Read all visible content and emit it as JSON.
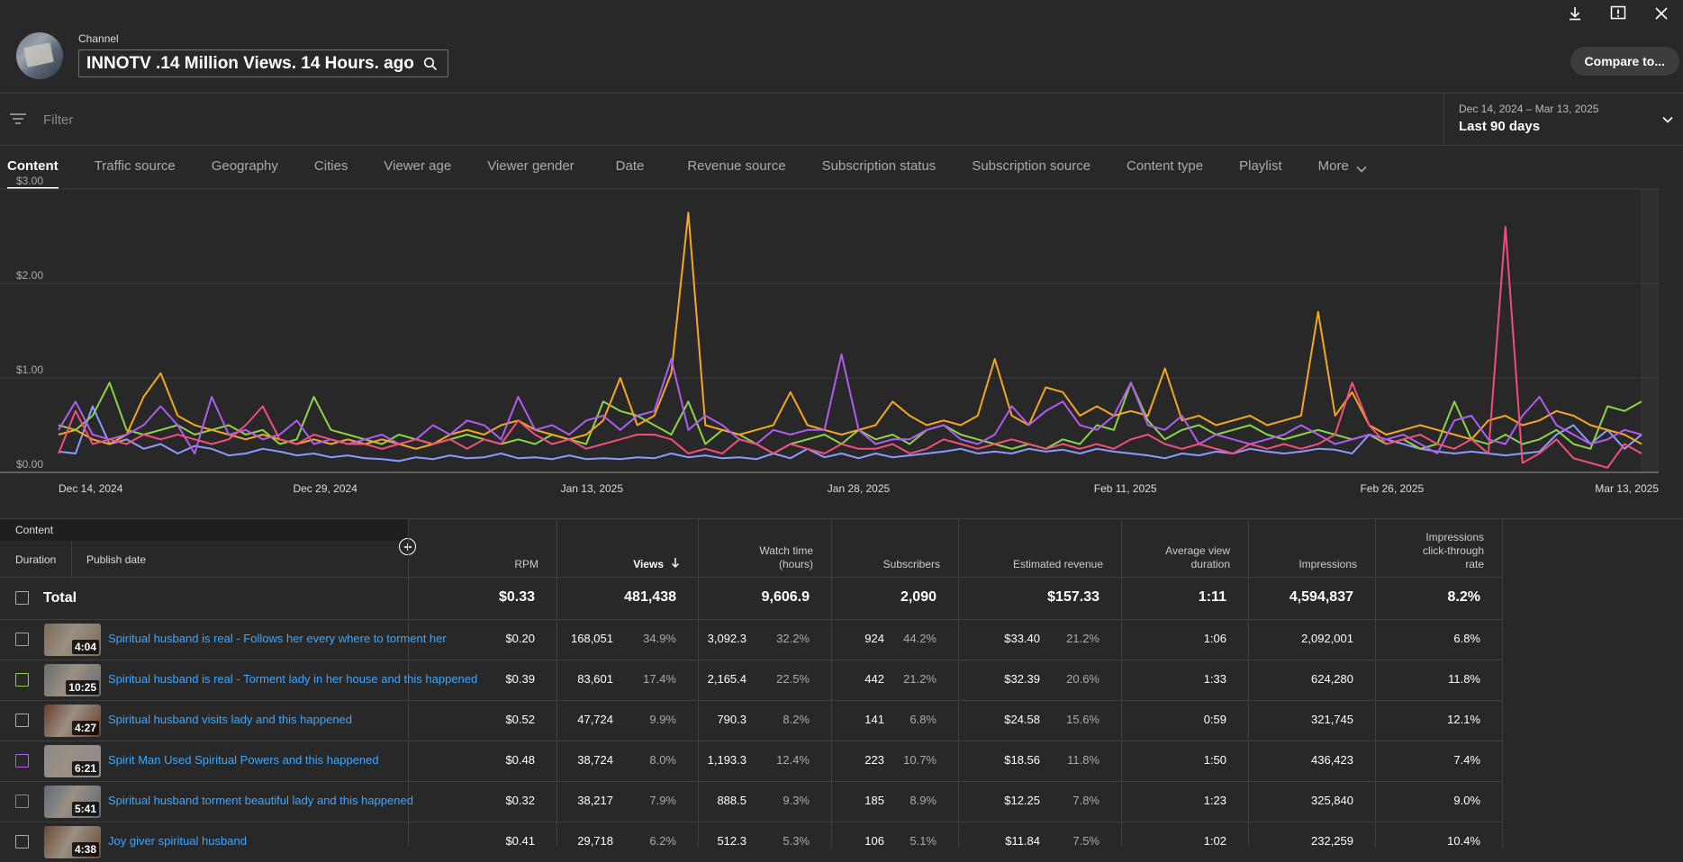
{
  "header": {
    "channel_label": "Channel",
    "channel_name": "INNOTV .14 Million Views. 14 Hours. ago",
    "compare_label": "Compare to..."
  },
  "filter": {
    "placeholder": "Filter",
    "date_range": "Dec 14, 2024 – Mar 13, 2025",
    "period": "Last 90 days"
  },
  "tabs": [
    "Content",
    "Traffic source",
    "Geography",
    "Cities",
    "Viewer age",
    "Viewer gender",
    "Date",
    "Revenue source",
    "Subscription status",
    "Subscription source",
    "Content type",
    "Playlist",
    "More"
  ],
  "colors": {
    "blue": "#8c9bff",
    "green": "#8cd447",
    "orange": "#f5a623",
    "purple": "#b05cf2",
    "pink": "#f0507a",
    "link": "#3ea6ff"
  },
  "chart_data": {
    "type": "line",
    "ylabel": "",
    "xlabel": "",
    "ylim": [
      0,
      3
    ],
    "yticks": [
      "$0.00",
      "$1.00",
      "$2.00",
      "$3.00"
    ],
    "xticks": [
      "Dec 14, 2024",
      "Dec 29, 2024",
      "Jan 13, 2025",
      "Jan 28, 2025",
      "Feb 11, 2025",
      "Feb 26, 2025",
      "Mar 13, 2025"
    ],
    "x_start": "Dec 14, 2024",
    "x_end": "Mar 13, 2025",
    "series": [
      {
        "color": "#8c9bff",
        "values": [
          0.22,
          0.2,
          0.7,
          0.3,
          0.35,
          0.25,
          0.3,
          0.2,
          0.28,
          0.25,
          0.18,
          0.2,
          0.25,
          0.22,
          0.18,
          0.2,
          0.16,
          0.18,
          0.15,
          0.14,
          0.12,
          0.16,
          0.14,
          0.18,
          0.15,
          0.16,
          0.2,
          0.15,
          0.16,
          0.14,
          0.18,
          0.14,
          0.15,
          0.14,
          0.16,
          0.15,
          0.2,
          0.16,
          0.18,
          0.15,
          0.16,
          0.14,
          0.2,
          0.15,
          0.25,
          0.16,
          0.2,
          0.15,
          0.2,
          0.16,
          0.18,
          0.2,
          0.22,
          0.25,
          0.2,
          0.22,
          0.2,
          0.25,
          0.22,
          0.24,
          0.2,
          0.25,
          0.22,
          0.2,
          0.18,
          0.15,
          0.2,
          0.18,
          0.22,
          0.2,
          0.25,
          0.22,
          0.2,
          0.22,
          0.25,
          0.24,
          0.2,
          0.4,
          0.35,
          0.3,
          0.25,
          0.22,
          0.2,
          0.22,
          0.2,
          0.18,
          0.2,
          0.22,
          0.4,
          0.5,
          0.3,
          0.45,
          0.25,
          0.4
        ]
      },
      {
        "color": "#8cd447",
        "values": [
          0.5,
          0.45,
          0.6,
          0.95,
          0.45,
          0.4,
          0.45,
          0.5,
          0.4,
          0.45,
          0.5,
          0.4,
          0.45,
          0.3,
          0.35,
          0.8,
          0.45,
          0.4,
          0.35,
          0.3,
          0.4,
          0.35,
          0.3,
          0.35,
          0.4,
          0.35,
          0.3,
          0.35,
          0.3,
          0.4,
          0.35,
          0.3,
          0.75,
          0.65,
          0.6,
          0.5,
          0.4,
          0.75,
          0.3,
          0.45,
          0.4,
          0.3,
          0.2,
          0.3,
          0.35,
          0.4,
          0.3,
          0.45,
          0.35,
          0.4,
          0.3,
          0.45,
          0.5,
          0.4,
          0.35,
          0.3,
          0.25,
          0.3,
          0.25,
          0.35,
          0.3,
          0.5,
          0.45,
          0.95,
          0.55,
          0.35,
          0.45,
          0.5,
          0.4,
          0.45,
          0.5,
          0.4,
          0.35,
          0.4,
          0.45,
          0.4,
          0.35,
          0.4,
          0.3,
          0.35,
          0.25,
          0.3,
          0.75,
          0.35,
          0.3,
          0.4,
          0.3,
          0.35,
          0.45,
          0.3,
          0.25,
          0.7,
          0.65,
          0.75
        ]
      },
      {
        "color": "#f5a623",
        "values": [
          0.4,
          0.45,
          0.35,
          0.3,
          0.4,
          0.8,
          1.05,
          0.6,
          0.5,
          0.45,
          0.4,
          0.35,
          0.4,
          0.35,
          0.3,
          0.35,
          0.3,
          0.35,
          0.3,
          0.35,
          0.3,
          0.25,
          0.3,
          0.4,
          0.45,
          0.4,
          0.5,
          0.55,
          0.45,
          0.4,
          0.35,
          0.4,
          0.55,
          1.0,
          0.5,
          0.6,
          1.05,
          2.75,
          0.5,
          0.45,
          0.4,
          0.45,
          0.5,
          0.85,
          0.5,
          0.45,
          0.4,
          0.45,
          0.5,
          0.75,
          0.6,
          0.5,
          0.55,
          0.5,
          0.6,
          1.2,
          0.6,
          0.5,
          0.9,
          0.85,
          0.6,
          0.7,
          0.6,
          0.65,
          0.6,
          1.1,
          0.55,
          0.6,
          0.5,
          0.55,
          0.6,
          0.5,
          0.55,
          0.6,
          1.7,
          0.6,
          0.85,
          0.5,
          0.4,
          0.45,
          0.5,
          0.45,
          0.4,
          0.35,
          0.55,
          0.6,
          0.5,
          0.55,
          0.65,
          0.6,
          0.5,
          0.45,
          0.4,
          0.3
        ]
      },
      {
        "color": "#b05cf2",
        "values": [
          0.45,
          0.75,
          0.4,
          0.35,
          0.4,
          0.5,
          0.7,
          0.5,
          0.2,
          0.8,
          0.4,
          0.45,
          0.35,
          0.4,
          0.55,
          0.3,
          0.35,
          0.3,
          0.35,
          0.4,
          0.3,
          0.35,
          0.5,
          0.4,
          0.55,
          0.5,
          0.35,
          0.8,
          0.45,
          0.5,
          0.4,
          0.55,
          0.6,
          0.45,
          0.6,
          0.65,
          1.2,
          0.45,
          0.6,
          0.5,
          0.35,
          0.3,
          0.45,
          0.4,
          0.45,
          0.45,
          1.25,
          0.45,
          0.3,
          0.35,
          0.35,
          0.45,
          0.5,
          0.35,
          0.3,
          0.4,
          0.7,
          0.5,
          0.65,
          0.75,
          0.5,
          0.45,
          0.6,
          0.95,
          0.5,
          0.45,
          0.6,
          0.3,
          0.4,
          0.35,
          0.3,
          0.35,
          0.4,
          0.5,
          0.4,
          0.3,
          0.35,
          0.4,
          0.35,
          0.4,
          0.3,
          0.2,
          0.55,
          0.6,
          0.35,
          0.3,
          0.6,
          0.8,
          0.5,
          0.4,
          0.3,
          0.35,
          0.45,
          0.4
        ]
      },
      {
        "color": "#f0507a",
        "values": [
          0.2,
          0.65,
          0.3,
          0.35,
          0.3,
          0.4,
          0.35,
          0.4,
          0.35,
          0.3,
          0.35,
          0.5,
          0.7,
          0.35,
          0.3,
          0.4,
          0.35,
          0.3,
          0.3,
          0.25,
          0.3,
          0.35,
          0.3,
          0.35,
          0.25,
          0.35,
          0.3,
          0.55,
          0.4,
          0.3,
          0.35,
          0.25,
          0.3,
          0.35,
          0.4,
          0.4,
          0.35,
          0.2,
          0.25,
          0.2,
          0.35,
          0.3,
          0.2,
          0.3,
          0.25,
          0.2,
          0.3,
          0.25,
          0.25,
          0.3,
          0.2,
          0.25,
          0.35,
          0.3,
          0.25,
          0.3,
          0.35,
          0.3,
          0.25,
          0.3,
          0.25,
          0.3,
          0.25,
          0.35,
          0.4,
          0.3,
          0.25,
          0.3,
          0.25,
          0.2,
          0.3,
          0.25,
          0.3,
          0.25,
          0.3,
          0.4,
          0.95,
          0.5,
          0.3,
          0.35,
          0.4,
          0.3,
          0.25,
          0.35,
          0.2,
          2.6,
          0.1,
          0.2,
          0.35,
          0.15,
          0.1,
          0.05,
          0.3,
          0.2
        ]
      }
    ]
  },
  "table": {
    "content_header": "Content",
    "duration_header": "Duration",
    "publish_header": "Publish date",
    "columns": [
      {
        "key": "rpm",
        "label": "RPM"
      },
      {
        "key": "views",
        "label": "Views"
      },
      {
        "key": "watch",
        "label": "Watch time (hours)"
      },
      {
        "key": "subs",
        "label": "Subscribers"
      },
      {
        "key": "rev",
        "label": "Estimated revenue"
      },
      {
        "key": "avd",
        "label": "Average view duration"
      },
      {
        "key": "imp",
        "label": "Impressions"
      },
      {
        "key": "ctr",
        "label": "Impressions click-through rate"
      }
    ],
    "total": {
      "label": "Total",
      "rpm": "$0.33",
      "views": "481,438",
      "watch": "9,606.9",
      "subs": "2,090",
      "rev": "$157.33",
      "avd": "1:11",
      "imp": "4,594,837",
      "ctr": "8.2%"
    },
    "rows": [
      {
        "title": "Spiritual husband is real - Follows her every where to torment her",
        "duration": "4:04",
        "color": "#8c9bff",
        "thumb": "#7d6a55",
        "rpm": "$0.20",
        "views": "168,051",
        "views_pct": "34.9%",
        "watch": "3,092.3",
        "watch_pct": "32.2%",
        "subs": "924",
        "subs_pct": "44.2%",
        "rev": "$33.40",
        "rev_pct": "21.2%",
        "avd": "1:06",
        "imp": "2,092,001",
        "ctr": "6.8%"
      },
      {
        "title": "Spiritual husband is real - Torment lady in her house and this happened",
        "duration": "10:25",
        "color": "#8cd447",
        "thumb": "#6b6b6b",
        "rpm": "$0.39",
        "views": "83,601",
        "views_pct": "17.4%",
        "watch": "2,165.4",
        "watch_pct": "22.5%",
        "subs": "442",
        "subs_pct": "21.2%",
        "rev": "$32.39",
        "rev_pct": "20.6%",
        "avd": "1:33",
        "imp": "624,280",
        "ctr": "11.8%"
      },
      {
        "title": "Spiritual husband visits lady and this happened",
        "duration": "4:27",
        "color": "#f5a623",
        "thumb": "#6a3e2a",
        "rpm": "$0.52",
        "views": "47,724",
        "views_pct": "9.9%",
        "watch": "790.3",
        "watch_pct": "8.2%",
        "subs": "141",
        "subs_pct": "6.8%",
        "rev": "$24.58",
        "rev_pct": "15.6%",
        "avd": "0:59",
        "imp": "321,745",
        "ctr": "12.1%"
      },
      {
        "title": "Spirit Man Used Spiritual Powers and this happened",
        "duration": "6:21",
        "color": "#b05cf2",
        "thumb": "#8a8a8a",
        "rpm": "$0.48",
        "views": "38,724",
        "views_pct": "8.0%",
        "watch": "1,193.3",
        "watch_pct": "12.4%",
        "subs": "223",
        "subs_pct": "10.7%",
        "rev": "$18.56",
        "rev_pct": "11.8%",
        "avd": "1:50",
        "imp": "436,423",
        "ctr": "7.4%"
      },
      {
        "title": "Spiritual husband torment beautiful lady and this happened",
        "duration": "5:41",
        "color": "#f0507a",
        "thumb": "#5c6a7a",
        "rpm": "$0.32",
        "views": "38,217",
        "views_pct": "7.9%",
        "watch": "888.5",
        "watch_pct": "9.3%",
        "subs": "185",
        "subs_pct": "8.9%",
        "rev": "$12.25",
        "rev_pct": "7.8%",
        "avd": "1:23",
        "imp": "325,840",
        "ctr": "9.0%"
      },
      {
        "title": "Joy giver spiritual husband",
        "duration": "4:38",
        "color": "#aaaaaa",
        "thumb": "#6a4a34",
        "rpm": "$0.41",
        "views": "29,718",
        "views_pct": "6.2%",
        "watch": "512.3",
        "watch_pct": "5.3%",
        "subs": "106",
        "subs_pct": "5.1%",
        "rev": "$11.84",
        "rev_pct": "7.5%",
        "avd": "1:02",
        "imp": "232,259",
        "ctr": "10.4%"
      }
    ]
  }
}
